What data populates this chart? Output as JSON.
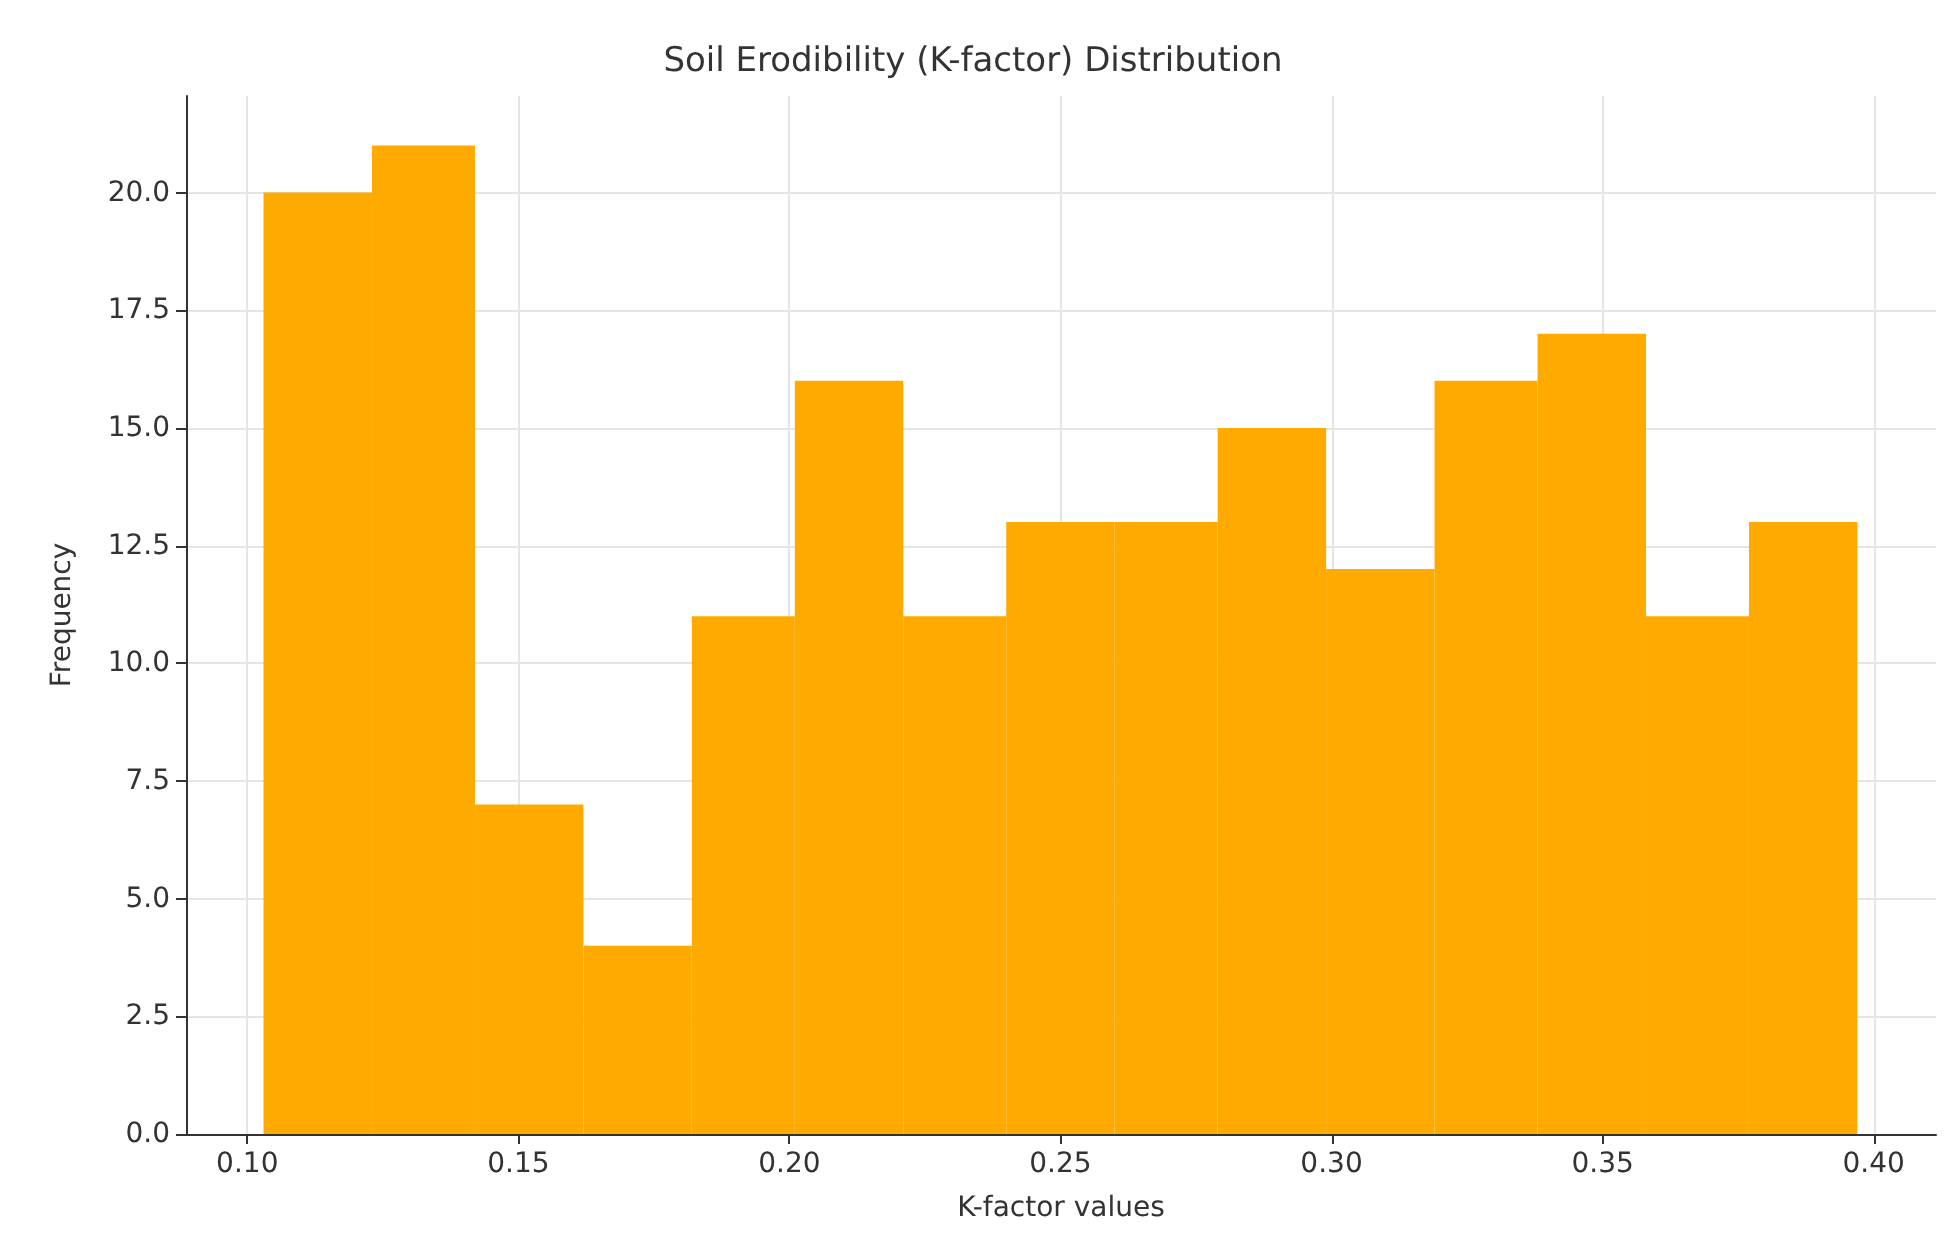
{
  "chart_data": {
    "type": "histogram",
    "title": "Soil Erodibility (K-factor) Distribution",
    "xlabel": "K-factor values",
    "ylabel": "Frequency",
    "bins": [
      0.103,
      0.123,
      0.142,
      0.162,
      0.182,
      0.201,
      0.221,
      0.24,
      0.26,
      0.279,
      0.299,
      0.319,
      0.338,
      0.358,
      0.377,
      0.397
    ],
    "values": [
      20,
      21,
      7,
      4,
      11,
      16,
      11,
      13,
      13,
      15,
      12,
      16,
      17,
      11,
      13
    ],
    "color": "#ffaa00",
    "xlim": [
      0.0887,
      0.4115
    ],
    "xticks": [
      {
        "value": 0.1,
        "label": "0.10"
      },
      {
        "value": 0.15,
        "label": "0.15"
      },
      {
        "value": 0.2,
        "label": "0.20"
      },
      {
        "value": 0.25,
        "label": "0.25"
      },
      {
        "value": 0.3,
        "label": "0.30"
      },
      {
        "value": 0.35,
        "label": "0.35"
      },
      {
        "value": 0.4,
        "label": "0.40"
      }
    ],
    "ylim": [
      0,
      22.05
    ],
    "yticks": [
      {
        "value": 0,
        "label": "0.0"
      },
      2.5,
      {
        "value": 5,
        "label": "5.0"
      },
      7.5,
      {
        "value": 10,
        "label": "10.0"
      },
      12.5,
      {
        "value": 15,
        "label": "15.0"
      },
      17.5,
      {
        "value": 20,
        "label": "20.0"
      }
    ],
    "grid": true
  }
}
